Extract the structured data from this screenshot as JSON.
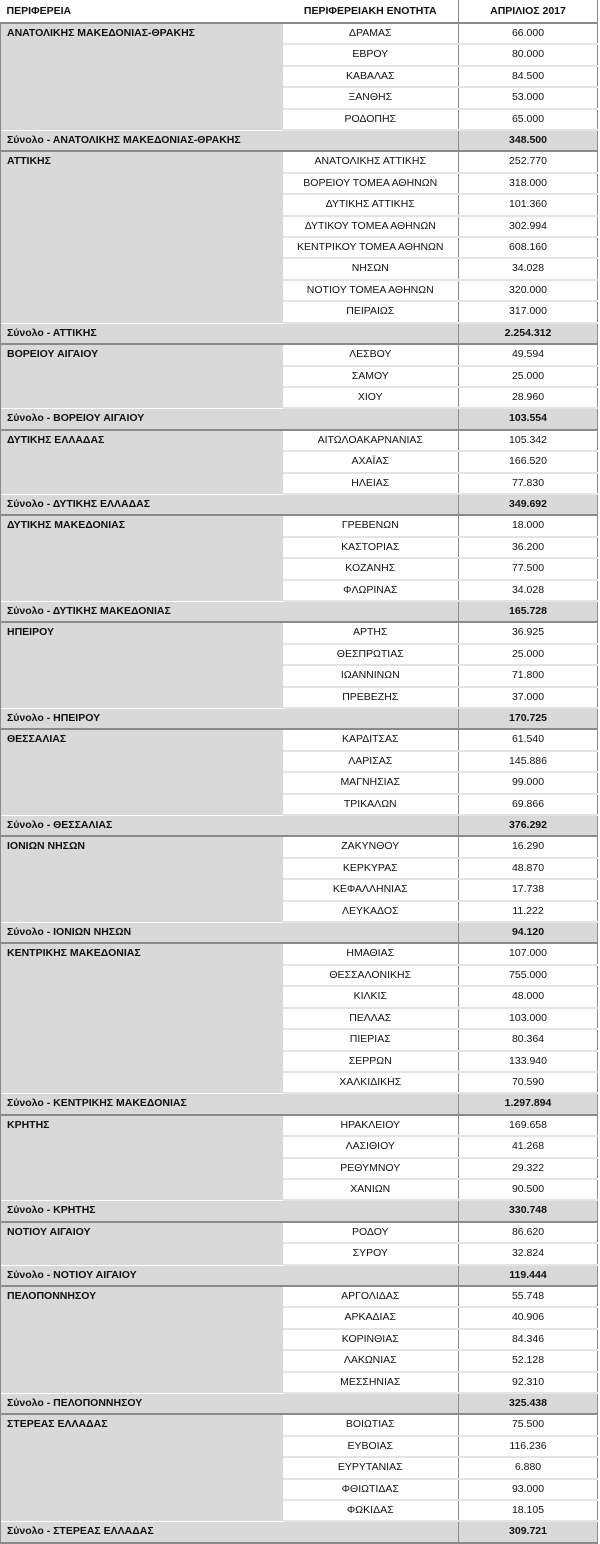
{
  "headers": {
    "region": "ΠΕΡΙΦΕΡΕΙΑ",
    "unit": "ΠΕΡΙΦΕΡΕΙΑΚΗ ΕΝΟΤΗΤΑ",
    "value": "ΑΠΡΙΛΙΟΣ 2017"
  },
  "regions": [
    {
      "name": "ΑΝΑΤΟΛΙΚΗΣ ΜΑΚΕΔΟΝΙΑΣ-ΘΡΑΚΗΣ",
      "total_label": "Σύνολο - ΑΝΑΤΟΛΙΚΗΣ ΜΑΚΕΔΟΝΙΑΣ-ΘΡΑΚΗΣ",
      "total": "348.500",
      "units": [
        {
          "name": "ΔΡΑΜΑΣ",
          "value": "66.000"
        },
        {
          "name": "ΕΒΡΟΥ",
          "value": "80.000"
        },
        {
          "name": "ΚΑΒΑΛΑΣ",
          "value": "84.500"
        },
        {
          "name": "ΞΑΝΘΗΣ",
          "value": "53.000"
        },
        {
          "name": "ΡΟΔΟΠΗΣ",
          "value": "65.000"
        }
      ]
    },
    {
      "name": "ΑΤΤΙΚΗΣ",
      "total_label": "Σύνολο - ΑΤΤΙΚΗΣ",
      "total": "2.254.312",
      "units": [
        {
          "name": "ΑΝΑΤΟΛΙΚΗΣ ΑΤΤΙΚΗΣ",
          "value": "252.770"
        },
        {
          "name": "ΒΟΡΕΙΟΥ ΤΟΜΕΑ ΑΘΗΝΩΝ",
          "value": "318.000"
        },
        {
          "name": "ΔΥΤΙΚΗΣ ΑΤΤΙΚΗΣ",
          "value": "101.360"
        },
        {
          "name": "ΔΥΤΙΚΟΥ ΤΟΜΕΑ ΑΘΗΝΩΝ",
          "value": "302.994"
        },
        {
          "name": "ΚΕΝΤΡΙΚΟΥ ΤΟΜΕΑ ΑΘΗΝΩΝ",
          "value": "608.160"
        },
        {
          "name": "ΝΗΣΩΝ",
          "value": "34.028"
        },
        {
          "name": "ΝΟΤΙΟΥ ΤΟΜΕΑ ΑΘΗΝΩΝ",
          "value": "320.000"
        },
        {
          "name": "ΠΕΙΡΑΙΩΣ",
          "value": "317.000"
        }
      ]
    },
    {
      "name": "ΒΟΡΕΙΟΥ ΑΙΓΑΙΟΥ",
      "total_label": "Σύνολο - ΒΟΡΕΙΟΥ ΑΙΓΑΙΟΥ",
      "total": "103.554",
      "units": [
        {
          "name": "ΛΕΣΒΟΥ",
          "value": "49.594"
        },
        {
          "name": "ΣΑΜΟΥ",
          "value": "25.000"
        },
        {
          "name": "ΧΙΟΥ",
          "value": "28.960"
        }
      ]
    },
    {
      "name": "ΔΥΤΙΚΗΣ ΕΛΛΑΔΑΣ",
      "total_label": "Σύνολο - ΔΥΤΙΚΗΣ ΕΛΛΑΔΑΣ",
      "total": "349.692",
      "units": [
        {
          "name": "ΑΙΤΩΛΟΑΚΑΡΝΑΝΙΑΣ",
          "value": "105.342"
        },
        {
          "name": "ΑΧΑΪΑΣ",
          "value": "166.520"
        },
        {
          "name": "ΗΛΕΙΑΣ",
          "value": "77.830"
        }
      ]
    },
    {
      "name": "ΔΥΤΙΚΗΣ ΜΑΚΕΔΟΝΙΑΣ",
      "total_label": "Σύνολο - ΔΥΤΙΚΗΣ ΜΑΚΕΔΟΝΙΑΣ",
      "total": "165.728",
      "units": [
        {
          "name": "ΓΡΕΒΕΝΩΝ",
          "value": "18.000"
        },
        {
          "name": "ΚΑΣΤΟΡΙΑΣ",
          "value": "36.200"
        },
        {
          "name": "ΚΟΖΑΝΗΣ",
          "value": "77.500"
        },
        {
          "name": "ΦΛΩΡΙΝΑΣ",
          "value": "34.028"
        }
      ]
    },
    {
      "name": "ΗΠΕΙΡΟΥ",
      "total_label": "Σύνολο - ΗΠΕΙΡΟΥ",
      "total": "170.725",
      "units": [
        {
          "name": "ΑΡΤΗΣ",
          "value": "36.925"
        },
        {
          "name": "ΘΕΣΠΡΩΤΙΑΣ",
          "value": "25.000"
        },
        {
          "name": "ΙΩΑΝΝΙΝΩΝ",
          "value": "71.800"
        },
        {
          "name": "ΠΡΕΒΕΖΗΣ",
          "value": "37.000"
        }
      ]
    },
    {
      "name": "ΘΕΣΣΑΛΙΑΣ",
      "total_label": "Σύνολο - ΘΕΣΣΑΛΙΑΣ",
      "total": "376.292",
      "units": [
        {
          "name": "ΚΑΡΔΙΤΣΑΣ",
          "value": "61.540"
        },
        {
          "name": "ΛΑΡΙΣΑΣ",
          "value": "145.886"
        },
        {
          "name": "ΜΑΓΝΗΣΙΑΣ",
          "value": "99.000"
        },
        {
          "name": "ΤΡΙΚΑΛΩΝ",
          "value": "69.866"
        }
      ]
    },
    {
      "name": "ΙΟΝΙΩΝ ΝΗΣΩΝ",
      "total_label": "Σύνολο - ΙΟΝΙΩΝ ΝΗΣΩΝ",
      "total": "94.120",
      "units": [
        {
          "name": "ΖΑΚΥΝΘΟΥ",
          "value": "16.290"
        },
        {
          "name": "ΚΕΡΚΥΡΑΣ",
          "value": "48.870"
        },
        {
          "name": "ΚΕΦΑΛΛΗΝΙΑΣ",
          "value": "17.738"
        },
        {
          "name": "ΛΕΥΚΑΔΟΣ",
          "value": "11.222"
        }
      ]
    },
    {
      "name": "ΚΕΝΤΡΙΚΗΣ ΜΑΚΕΔΟΝΙΑΣ",
      "total_label": "Σύνολο - ΚΕΝΤΡΙΚΗΣ ΜΑΚΕΔΟΝΙΑΣ",
      "total": "1.297.894",
      "units": [
        {
          "name": "ΗΜΑΘΙΑΣ",
          "value": "107.000"
        },
        {
          "name": "ΘΕΣΣΑΛΟΝΙΚΗΣ",
          "value": "755.000"
        },
        {
          "name": "ΚΙΛΚΙΣ",
          "value": "48.000"
        },
        {
          "name": "ΠΕΛΛΑΣ",
          "value": "103.000"
        },
        {
          "name": "ΠΙΕΡΙΑΣ",
          "value": "80.364"
        },
        {
          "name": "ΣΕΡΡΩΝ",
          "value": "133.940"
        },
        {
          "name": "ΧΑΛΚΙΔΙΚΗΣ",
          "value": "70.590"
        }
      ]
    },
    {
      "name": "ΚΡΗΤΗΣ",
      "total_label": "Σύνολο - ΚΡΗΤΗΣ",
      "total": "330.748",
      "units": [
        {
          "name": "ΗΡΑΚΛΕΙΟΥ",
          "value": "169.658"
        },
        {
          "name": "ΛΑΣΙΘΙΟΥ",
          "value": "41.268"
        },
        {
          "name": "ΡΕΘΥΜΝΟΥ",
          "value": "29.322"
        },
        {
          "name": "ΧΑΝΙΩΝ",
          "value": "90.500"
        }
      ]
    },
    {
      "name": "ΝΟΤΙΟΥ ΑΙΓΑΙΟΥ",
      "total_label": "Σύνολο - ΝΟΤΙΟΥ ΑΙΓΑΙΟΥ",
      "total": "119.444",
      "units": [
        {
          "name": "ΡΟΔΟΥ",
          "value": "86.620"
        },
        {
          "name": "ΣΥΡΟΥ",
          "value": "32.824"
        }
      ]
    },
    {
      "name": "ΠΕΛΟΠΟΝΝΗΣΟΥ",
      "total_label": "Σύνολο - ΠΕΛΟΠΟΝΝΗΣΟΥ",
      "total": "325.438",
      "units": [
        {
          "name": "ΑΡΓΟΛΙΔΑΣ",
          "value": "55.748"
        },
        {
          "name": "ΑΡΚΑΔΙΑΣ",
          "value": "40.906"
        },
        {
          "name": "ΚΟΡΙΝΘΙΑΣ",
          "value": "84.346"
        },
        {
          "name": "ΛΑΚΩΝΙΑΣ",
          "value": "52.128"
        },
        {
          "name": "ΜΕΣΣΗΝΙΑΣ",
          "value": "92.310"
        }
      ]
    },
    {
      "name": "ΣΤΕΡΕΑΣ ΕΛΛΑΔΑΣ",
      "total_label": "Σύνολο - ΣΤΕΡΕΑΣ ΕΛΛΑΔΑΣ",
      "total": "309.721",
      "units": [
        {
          "name": "ΒΟΙΩΤΙΑΣ",
          "value": "75.500"
        },
        {
          "name": "ΕΥΒΟΙΑΣ",
          "value": "116.236"
        },
        {
          "name": "ΕΥΡΥΤΑΝΙΑΣ",
          "value": "6.880"
        },
        {
          "name": "ΦΘΙΩΤΙΔΑΣ",
          "value": "93.000"
        },
        {
          "name": "ΦΩΚΙΔΑΣ",
          "value": "18.105"
        }
      ]
    }
  ]
}
